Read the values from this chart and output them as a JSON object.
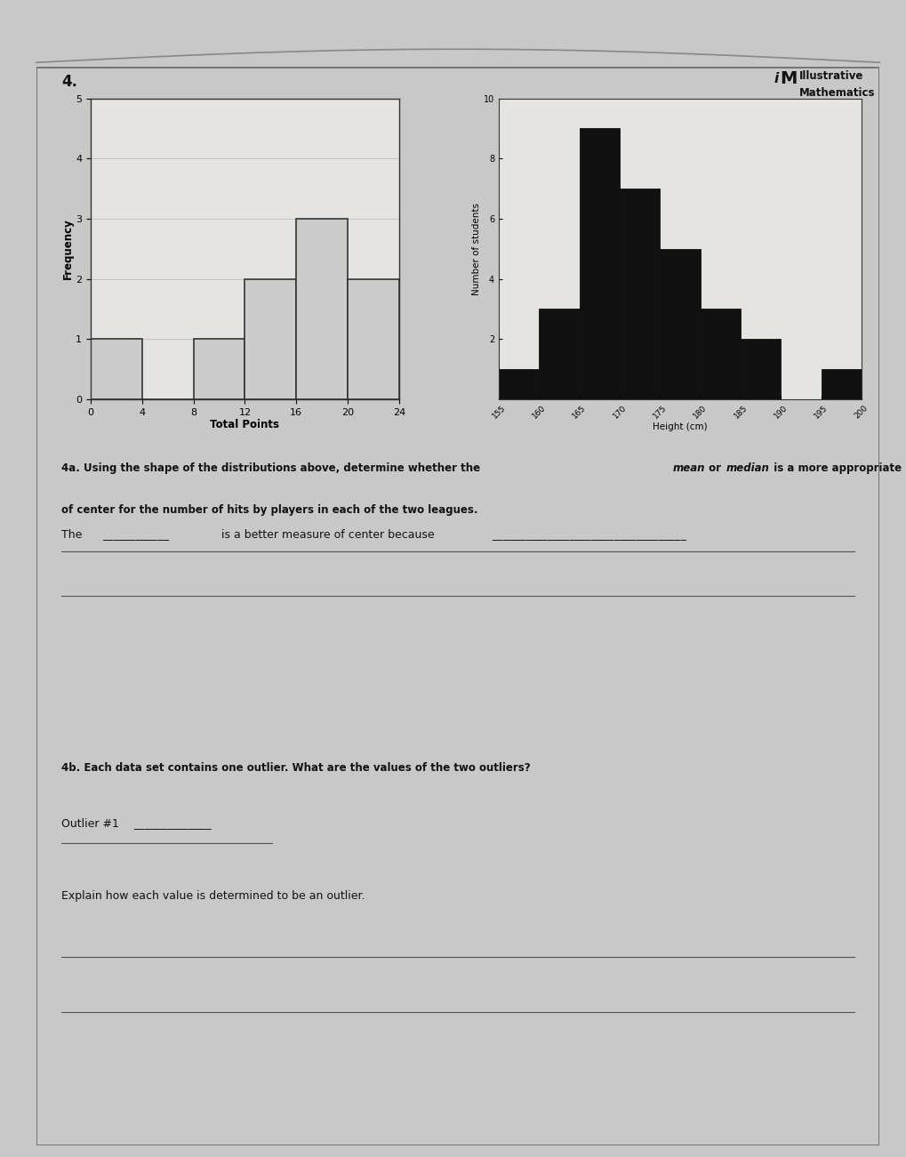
{
  "page_bg": "#c8c8c8",
  "paper_bg": "#e6e4e0",
  "number_label": "4.",
  "brand_text1": "Illustrative",
  "brand_text2": "Mathematics",
  "left_hist": {
    "xlabel": "Total Points",
    "ylabel": "Frequency",
    "bar_edges": [
      0,
      4,
      8,
      12,
      16,
      20,
      24
    ],
    "bar_heights": [
      1,
      0,
      1,
      2,
      3,
      2
    ],
    "ylim": [
      0,
      5
    ],
    "yticks": [
      0,
      1,
      2,
      3,
      4,
      5
    ],
    "xlim": [
      0,
      24
    ],
    "xticks": [
      0,
      4,
      8,
      12,
      16,
      20,
      24
    ],
    "bar_color": "#cccccc",
    "bar_edgecolor": "#333333"
  },
  "right_hist": {
    "xlabel": "Height (cm)",
    "ylabel": "Number of students",
    "bar_edges": [
      155,
      160,
      165,
      170,
      175,
      180,
      185,
      190,
      195,
      200
    ],
    "bar_heights": [
      1,
      3,
      9,
      7,
      5,
      3,
      2,
      0,
      1
    ],
    "ylim": [
      0,
      10
    ],
    "yticks": [
      2,
      4,
      6,
      8,
      10
    ],
    "xlim": [
      155,
      200
    ],
    "xticks": [
      155,
      160,
      165,
      170,
      175,
      180,
      185,
      190,
      195,
      200
    ],
    "bar_color": "#111111",
    "bar_edgecolor": "#111111"
  },
  "question_4a_bold": "4a. Using the shape of the distributions above, determine whether the ",
  "question_4a_italic": "mean",
  "question_4a_mid": " or ",
  "question_4a_italic2": "median",
  "question_4a_end": "  is a more appropriate measure\nof center for the number of hits by players in each of the two leagues.",
  "the_line": "The ",
  "blank1": "____________",
  "is_better": " is a better measure of center because ",
  "blank2": "___________________________________",
  "question_4b": "4b. Each data set contains one outlier. What are the values of the two outliers?",
  "outlier_label": "Outlier #1 ",
  "outlier_blank": "______________",
  "explain_label": "Explain how each value is determined to be an outlier.",
  "line_color": "#555555",
  "text_color": "#111111"
}
